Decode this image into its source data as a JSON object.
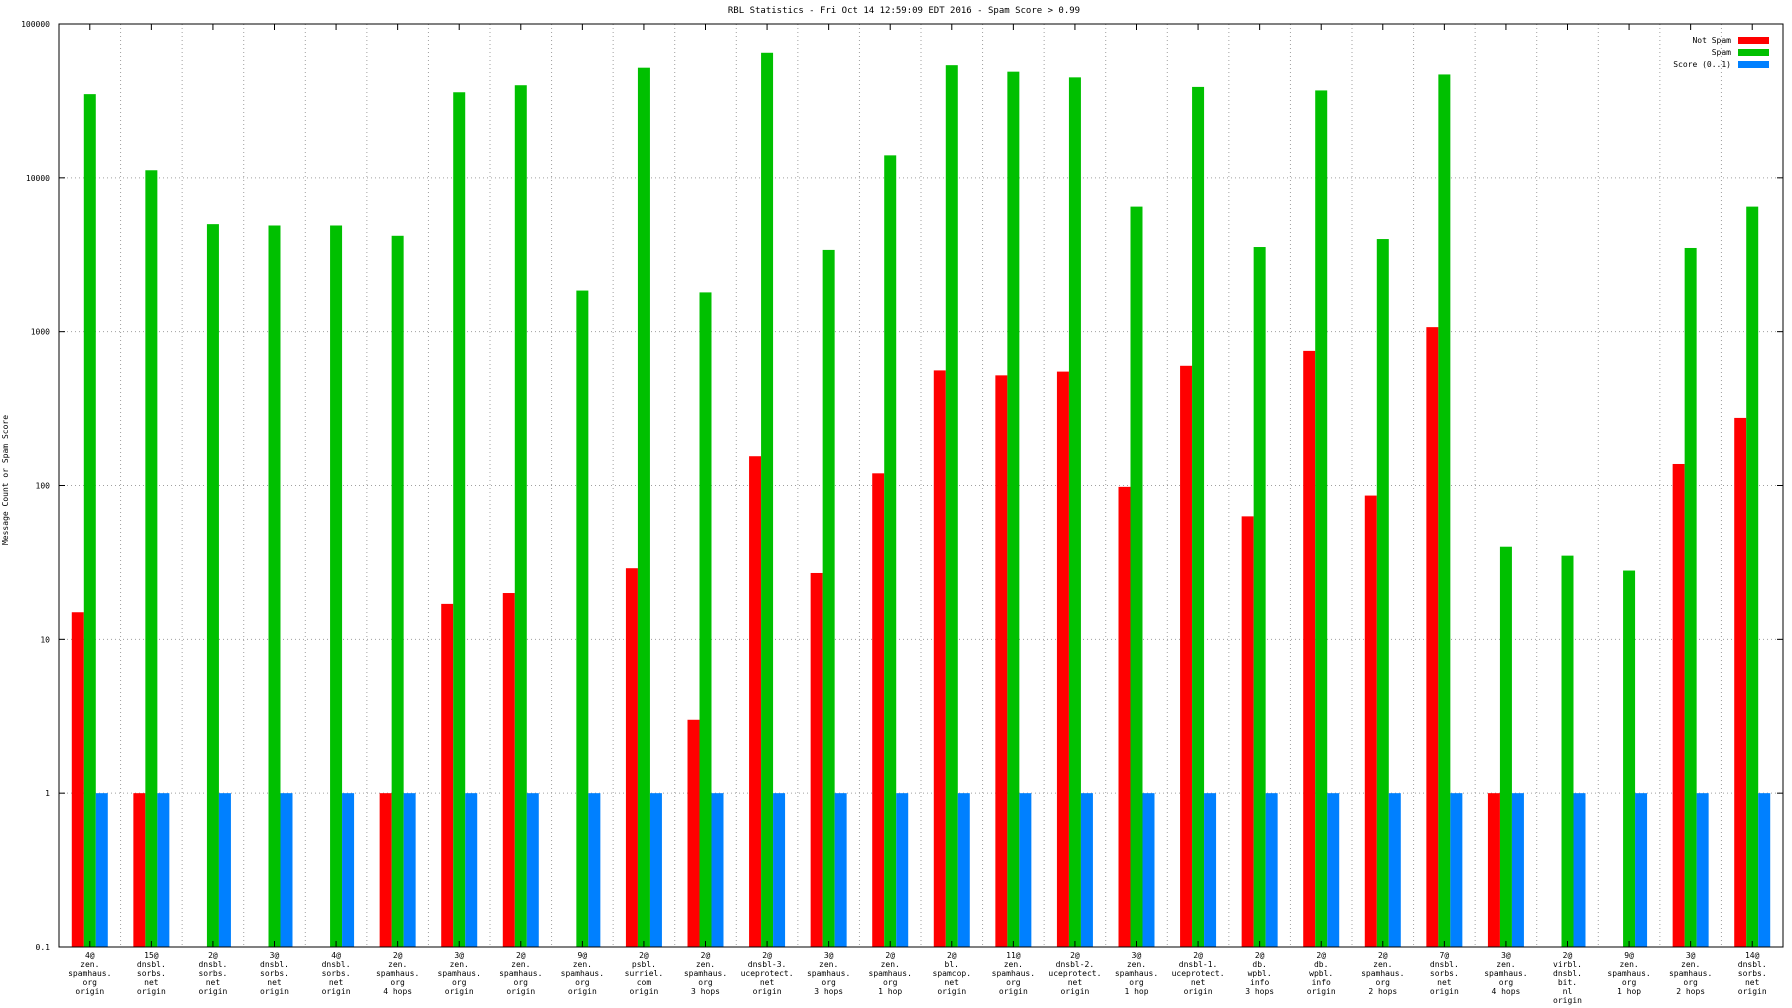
{
  "chart_data": {
    "type": "bar",
    "title": "RBL Statistics - Fri Oct 14 12:59:09 EDT 2016 - Spam Score > 0.99",
    "ylabel": "Message Count or Spam Score",
    "xlabel": "",
    "yscale": "log",
    "ylim": [
      0.1,
      100000
    ],
    "yticks": [
      0.1,
      1,
      10,
      100,
      1000,
      10000,
      100000
    ],
    "ytick_labels": [
      "0.1",
      "1",
      "10",
      "100",
      "1000",
      "10000",
      "100000"
    ],
    "grid": true,
    "legend_position": "top-right",
    "categories": [
      [
        "4@",
        "zen.",
        "spamhaus.",
        "org",
        "origin"
      ],
      [
        "15@",
        "dnsbl.",
        "sorbs.",
        "net",
        "origin"
      ],
      [
        "2@",
        "dnsbl.",
        "sorbs.",
        "net",
        "origin"
      ],
      [
        "3@",
        "dnsbl.",
        "sorbs.",
        "net",
        "origin"
      ],
      [
        "4@",
        "dnsbl.",
        "sorbs.",
        "net",
        "origin"
      ],
      [
        "2@",
        "zen.",
        "spamhaus.",
        "org",
        "4 hops"
      ],
      [
        "3@",
        "zen.",
        "spamhaus.",
        "org",
        "origin"
      ],
      [
        "2@",
        "zen.",
        "spamhaus.",
        "org",
        "origin"
      ],
      [
        "9@",
        "zen.",
        "spamhaus.",
        "org",
        "origin"
      ],
      [
        "2@",
        "psbl.",
        "surriel.",
        "com",
        "origin"
      ],
      [
        "2@",
        "zen.",
        "spamhaus.",
        "org",
        "3 hops"
      ],
      [
        "2@",
        "dnsbl-3.",
        "uceprotect.",
        "net",
        "origin"
      ],
      [
        "3@",
        "zen.",
        "spamhaus.",
        "org",
        "3 hops"
      ],
      [
        "2@",
        "zen.",
        "spamhaus.",
        "org",
        "1 hop"
      ],
      [
        "2@",
        "bl.",
        "spamcop.",
        "net",
        "origin"
      ],
      [
        "11@",
        "zen.",
        "spamhaus.",
        "org",
        "origin"
      ],
      [
        "2@",
        "dnsbl-2.",
        "uceprotect.",
        "net",
        "origin"
      ],
      [
        "3@",
        "zen.",
        "spamhaus.",
        "org",
        "1 hop"
      ],
      [
        "2@",
        "dnsbl-1.",
        "uceprotect.",
        "net",
        "origin"
      ],
      [
        "2@",
        "db.",
        "wpbl.",
        "info",
        "3 hops"
      ],
      [
        "2@",
        "db.",
        "wpbl.",
        "info",
        "origin"
      ],
      [
        "2@",
        "zen.",
        "spamhaus.",
        "org",
        "2 hops"
      ],
      [
        "7@",
        "dnsbl.",
        "sorbs.",
        "net",
        "origin"
      ],
      [
        "3@",
        "zen.",
        "spamhaus.",
        "org",
        "4 hops"
      ],
      [
        "2@",
        "virbl.",
        "dnsbl.",
        "bit.",
        "nl",
        "origin"
      ],
      [
        "9@",
        "zen.",
        "spamhaus.",
        "org",
        "1 hop"
      ],
      [
        "3@",
        "zen.",
        "spamhaus.",
        "org",
        "2 hops"
      ],
      [
        "14@",
        "dnsbl.",
        "sorbs.",
        "net",
        "origin"
      ]
    ],
    "series": [
      {
        "name": "Not Spam",
        "color": "#ff0000",
        "values": [
          15,
          1,
          null,
          null,
          null,
          1,
          17,
          20,
          null,
          29,
          3,
          155,
          27,
          120,
          560,
          520,
          550,
          98,
          600,
          63,
          750,
          86,
          1070,
          1,
          null,
          null,
          138,
          275
        ]
      },
      {
        "name": "Spam",
        "color": "#00c000",
        "values": [
          35000,
          11200,
          5000,
          4900,
          4900,
          4200,
          36000,
          40000,
          1850,
          52000,
          1800,
          65000,
          3400,
          14000,
          54000,
          49000,
          45000,
          6500,
          39000,
          3550,
          37000,
          4000,
          47000,
          40,
          null,
          null,
          3500,
          6500
        ]
      },
      {
        "name": "Score (0..1)",
        "color": "#0080ff",
        "values": [
          1,
          1,
          1,
          1,
          1,
          1,
          1,
          1,
          1,
          1,
          1,
          1,
          1,
          1,
          1,
          1,
          1,
          1,
          1,
          1,
          1,
          1,
          1,
          1,
          1,
          1,
          1,
          1
        ]
      }
    ],
    "extra_spam_values": {
      "24": 35,
      "25": 28
    }
  }
}
